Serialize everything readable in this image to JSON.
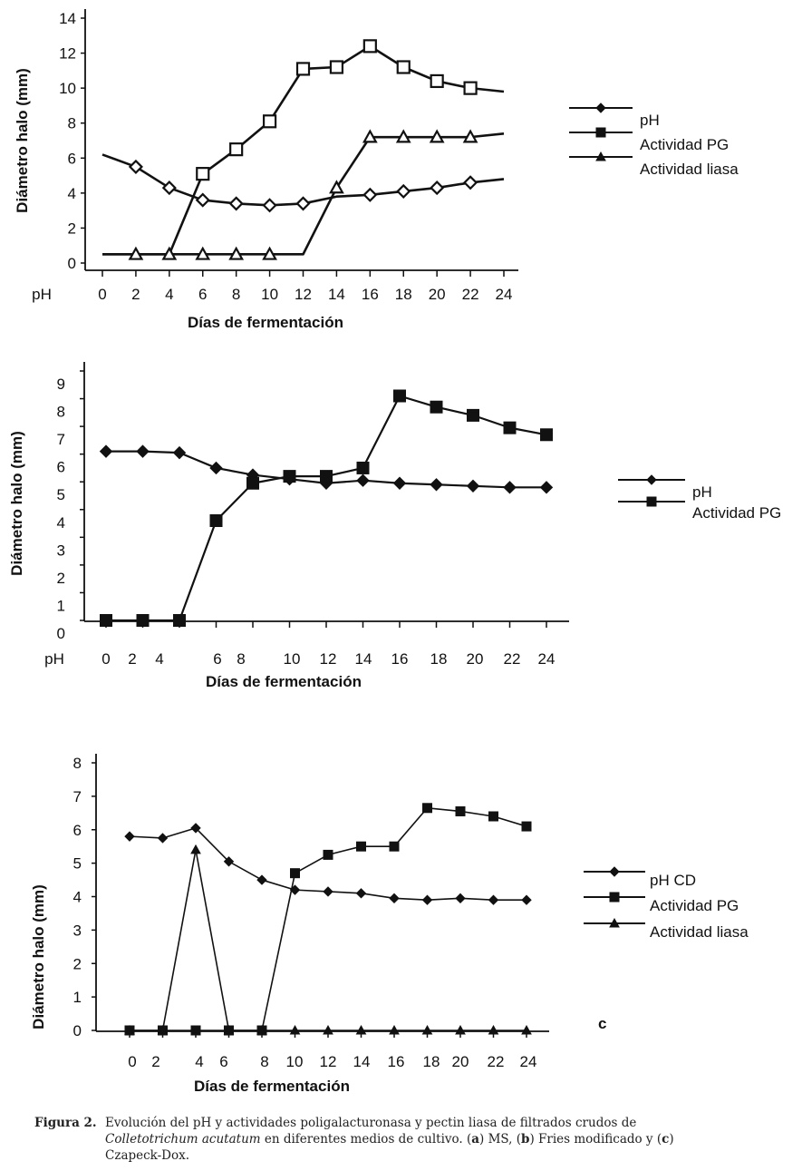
{
  "charts_meta": {
    "caption": {
      "label": "Figura 2.",
      "text_1": "Evolución del pH y actividades poligalacturonasa y pectin liasa de filtrados crudos de",
      "italic": "Colletotrichum acutatum",
      "text_2": " en diferentes medios de cultivo. (",
      "a": "a",
      "text_3": ") MS, (",
      "b": "b",
      "text_4": ") Fries modificado y (",
      "c": "c",
      "text_5": ")",
      "text_6": "Czapeck-Dox."
    }
  },
  "chart_data": [
    {
      "type": "line",
      "panel": "a",
      "title": "",
      "xlabel": "Días de fermentación",
      "ylabel": "Diámetro halo (mm)",
      "x_prefix_label": "pH",
      "x": [
        0,
        2,
        4,
        6,
        8,
        10,
        12,
        14,
        16,
        18,
        20,
        22,
        24
      ],
      "xticks": [
        "0",
        "2",
        "4",
        "6",
        "8",
        "10",
        "12",
        "14",
        "16",
        "18",
        "20",
        "22",
        "24"
      ],
      "yticks": [
        "0",
        "2",
        "4",
        "6",
        "8",
        "10",
        "12",
        "14"
      ],
      "ylim": [
        0,
        14
      ],
      "xlim": [
        0,
        24
      ],
      "grid": false,
      "legend_position": "right",
      "legend": [
        "pH",
        "Actividad PG",
        "Actividad liasa"
      ],
      "series": [
        {
          "name": "pH",
          "marker": "diamond-open",
          "values": [
            6.2,
            5.5,
            4.3,
            3.6,
            3.4,
            3.3,
            3.4,
            3.8,
            3.9,
            4.1,
            4.3,
            4.6,
            4.8
          ],
          "markers_at": [
            2,
            4,
            6,
            8,
            10,
            12,
            16,
            18,
            20,
            22
          ]
        },
        {
          "name": "Actividad PG",
          "marker": "square-open",
          "values": [
            0.5,
            0.5,
            0.5,
            5.1,
            6.5,
            8.1,
            11.1,
            11.2,
            12.4,
            11.2,
            10.4,
            10.0,
            9.8
          ],
          "markers_at": [
            6,
            8,
            10,
            12,
            14,
            16,
            18,
            20,
            22
          ]
        },
        {
          "name": "Actividad liasa",
          "marker": "triangle-open",
          "values": [
            0.5,
            0.5,
            0.5,
            0.5,
            0.5,
            0.5,
            0.5,
            4.3,
            7.2,
            7.2,
            7.2,
            7.2,
            7.4
          ],
          "markers_at": [
            2,
            4,
            6,
            8,
            10,
            14,
            16,
            18,
            20,
            22
          ]
        }
      ]
    },
    {
      "type": "line",
      "panel": "b",
      "title": "",
      "xlabel": "Días de fermentación",
      "ylabel": "Diámetro halo (mm)",
      "x_prefix_label": "pH",
      "x": [
        0,
        2,
        4,
        6,
        8,
        10,
        12,
        14,
        16,
        18,
        20,
        22,
        24
      ],
      "xticks": [
        "0",
        "2",
        "4",
        "6",
        "8",
        "10",
        "12",
        "14",
        "16",
        "18",
        "20",
        "22",
        "24"
      ],
      "yticks": [
        "0",
        "1",
        "2",
        "3",
        "4",
        "5",
        "6",
        "7",
        "8",
        "9"
      ],
      "ylim": [
        0,
        9
      ],
      "xlim": [
        0,
        24
      ],
      "grid": false,
      "legend_position": "right",
      "legend": [
        "pH",
        "Actividad PG"
      ],
      "series": [
        {
          "name": "pH",
          "marker": "diamond-filled",
          "values": [
            6.1,
            6.1,
            6.05,
            5.5,
            5.25,
            5.1,
            4.95,
            5.05,
            4.95,
            4.9,
            4.85,
            4.8,
            4.8
          ]
        },
        {
          "name": "Actividad PG",
          "marker": "square-filled",
          "values": [
            0,
            0,
            0,
            3.6,
            4.95,
            5.2,
            5.2,
            5.5,
            8.1,
            7.7,
            7.4,
            6.95,
            6.7
          ]
        }
      ]
    },
    {
      "type": "line",
      "panel": "c",
      "panel_label": "c",
      "title": "",
      "xlabel": "Días de fermentación",
      "ylabel": "Diámetro halo (mm)",
      "x": [
        0,
        2,
        4,
        6,
        8,
        10,
        12,
        14,
        16,
        18,
        20,
        22,
        24
      ],
      "xticks": [
        "0",
        "2",
        "4",
        "6",
        "8",
        "10",
        "12",
        "14",
        "16",
        "18",
        "20",
        "22",
        "24"
      ],
      "yticks": [
        "0",
        "1",
        "2",
        "3",
        "4",
        "5",
        "6",
        "7",
        "8"
      ],
      "ylim": [
        0,
        8
      ],
      "xlim": [
        0,
        24
      ],
      "grid": false,
      "legend_position": "right",
      "legend": [
        "pH CD",
        "Actividad PG",
        "Actividad liasa"
      ],
      "series": [
        {
          "name": "pH CD",
          "marker": "diamond-filled",
          "values": [
            5.8,
            5.75,
            6.05,
            5.05,
            4.5,
            4.2,
            4.15,
            4.1,
            3.95,
            3.9,
            3.95,
            3.9,
            3.9
          ]
        },
        {
          "name": "Actividad PG",
          "marker": "square-filled",
          "values": [
            0,
            0,
            0,
            0,
            0,
            4.7,
            5.25,
            5.5,
            5.5,
            6.65,
            6.55,
            6.4,
            6.1
          ]
        },
        {
          "name": "Actividad liasa",
          "marker": "triangle-filled",
          "values": [
            0,
            0,
            5.4,
            0,
            0,
            0,
            0,
            0,
            0,
            0,
            0,
            0,
            0
          ]
        }
      ]
    }
  ]
}
